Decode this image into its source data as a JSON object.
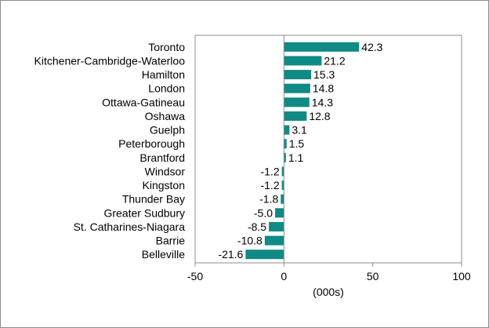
{
  "chart_data": {
    "type": "bar",
    "orientation": "horizontal",
    "categories": [
      "Toronto",
      "Kitchener-Cambridge-Waterloo",
      "Hamilton",
      "London",
      "Ottawa-Gatineau",
      "Oshawa",
      "Guelph",
      "Peterborough",
      "Brantford",
      "Windsor",
      "Kingston",
      "Thunder Bay",
      "Greater Sudbury",
      "St. Catharines-Niagara",
      "Barrie",
      "Belleville"
    ],
    "values": [
      42.3,
      21.2,
      15.3,
      14.8,
      14.3,
      12.8,
      3.1,
      1.5,
      1.1,
      -1.2,
      -1.2,
      -1.8,
      -5.0,
      -8.5,
      -10.8,
      -21.6
    ],
    "value_labels": [
      "42.3",
      "21.2",
      "15.3",
      "14.8",
      "14.3",
      "12.8",
      "3.1",
      "1.5",
      "1.1",
      "-1.2",
      "-1.2",
      "-1.8",
      "-5.0",
      "-8.5",
      "-10.8",
      "-21.6"
    ],
    "xlabel": "(000s)",
    "xlim": [
      -50,
      100
    ],
    "xticks": [
      -50,
      0,
      50,
      100
    ],
    "xtick_labels": [
      "-50",
      "0",
      "50",
      "100"
    ],
    "bar_color": "#108a84",
    "grid": false,
    "legend": "none"
  }
}
